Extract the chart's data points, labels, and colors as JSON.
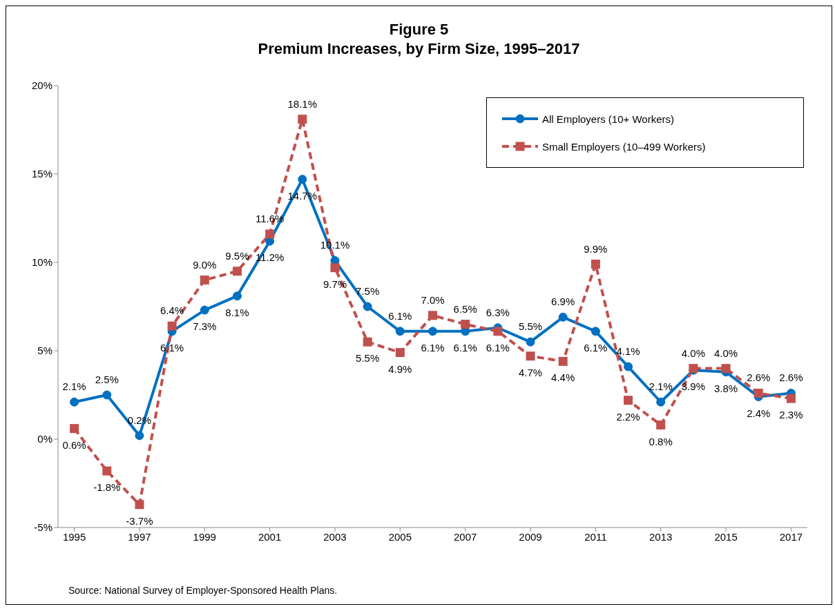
{
  "chart_data": {
    "type": "line",
    "title": "Figure 5",
    "subtitle": "Premium Increases, by Firm Size, 1995–2017",
    "x": [
      1995,
      1996,
      1997,
      1998,
      1999,
      2000,
      2001,
      2002,
      2003,
      2004,
      2005,
      2006,
      2007,
      2008,
      2009,
      2010,
      2011,
      2012,
      2013,
      2014,
      2015,
      2016,
      2017
    ],
    "series": [
      {
        "name": "All Employers (10+ Workers)",
        "color": "#0070c0",
        "marker": "circle",
        "line_style": "solid",
        "values": [
          2.1,
          2.5,
          0.2,
          6.1,
          7.3,
          8.1,
          11.2,
          14.7,
          10.1,
          7.5,
          6.1,
          6.1,
          6.1,
          6.3,
          5.5,
          6.9,
          6.1,
          4.1,
          2.1,
          3.9,
          3.8,
          2.4,
          2.6
        ],
        "value_labels": [
          "2.1%",
          "2.5%",
          "0.2%",
          "6.1%",
          "7.3%",
          "8.1%",
          "11.2%",
          "14.7%",
          "10.1%",
          "7.5%",
          "6.1%",
          "6.1%",
          "6.1%",
          "6.3%",
          "5.5%",
          "6.9%",
          "6.1%",
          "4.1%",
          "2.1%",
          "3.9%",
          "3.8%",
          "2.4%",
          "2.6%"
        ]
      },
      {
        "name": "Small Employers (10–499 Workers)",
        "color": "#c0504d",
        "marker": "square",
        "line_style": "dashed",
        "values": [
          0.6,
          -1.8,
          -3.7,
          6.4,
          9.0,
          9.5,
          11.6,
          18.1,
          9.7,
          5.5,
          4.9,
          7.0,
          6.5,
          6.1,
          4.7,
          4.4,
          9.9,
          2.2,
          0.8,
          4.0,
          4.0,
          2.6,
          2.3
        ],
        "value_labels": [
          "0.6%",
          "-1.8%",
          "-3.7%",
          "6.4%",
          "9.0%",
          "9.5%",
          "11.6%",
          "18.1%",
          "9.7%",
          "5.5%",
          "4.9%",
          "7.0%",
          "6.5%",
          "6.1%",
          "4.7%",
          "4.4%",
          "9.9%",
          "2.2%",
          "0.8%",
          "4.0%",
          "4.0%",
          "2.6%",
          "2.3%"
        ]
      }
    ],
    "xlim": [
      1994.5,
      2017.5
    ],
    "xticks": [
      1995,
      1997,
      1999,
      2001,
      2003,
      2005,
      2007,
      2009,
      2011,
      2013,
      2015,
      2017
    ],
    "ylim": [
      -5,
      20
    ],
    "yticks": [
      {
        "value": -5,
        "label": "-5%"
      },
      {
        "value": 0,
        "label": "0%"
      },
      {
        "value": 5,
        "label": "5%"
      },
      {
        "value": 10,
        "label": "10%"
      },
      {
        "value": 15,
        "label": "15%"
      },
      {
        "value": 20,
        "label": "20%"
      }
    ],
    "grid": false,
    "legend": "top right",
    "annotations": [
      "Source: National Survey of Employer-Sponsored Health Plans."
    ]
  }
}
